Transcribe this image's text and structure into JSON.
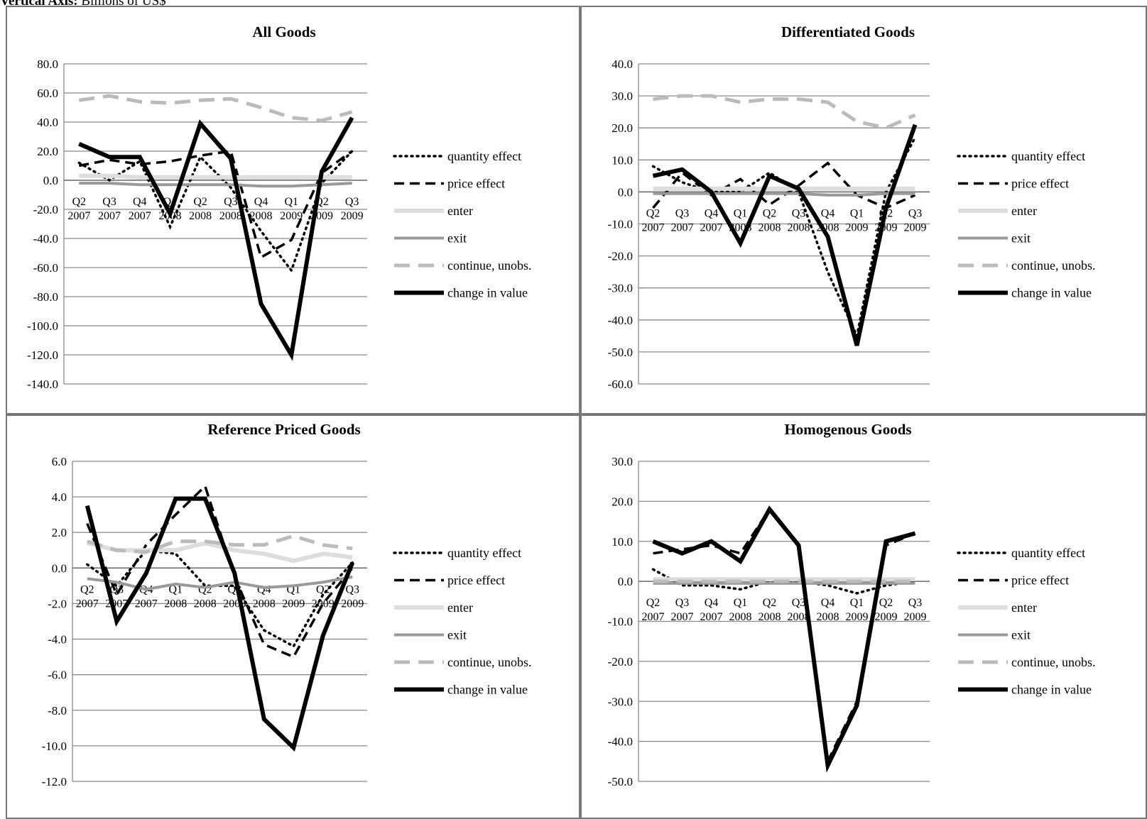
{
  "caption": {
    "label": "Vertical Axis:",
    "text": " Billions of US$"
  },
  "legend": [
    {
      "name": "quantity effect",
      "color": "#000000",
      "width": 3.5,
      "dash": "2,6"
    },
    {
      "name": "price effect",
      "color": "#000000",
      "width": 3.5,
      "dash": "14,8"
    },
    {
      "name": "enter",
      "color": "#dddddd",
      "width": 6,
      "dash": ""
    },
    {
      "name": "exit",
      "color": "#999999",
      "width": 4,
      "dash": ""
    },
    {
      "name": "continue, unobs.",
      "color": "#bbbbbb",
      "width": 5,
      "dash": "22,12"
    },
    {
      "name": "change in value",
      "color": "#000000",
      "width": 6,
      "dash": ""
    }
  ],
  "categories": [
    [
      "Q2",
      "2007"
    ],
    [
      "Q3",
      "2007"
    ],
    [
      "Q4",
      "2007"
    ],
    [
      "Q1",
      "2008"
    ],
    [
      "Q2",
      "2008"
    ],
    [
      "Q3",
      "2008"
    ],
    [
      "Q4",
      "2008"
    ],
    [
      "Q1",
      "2009"
    ],
    [
      "Q2",
      "2009"
    ],
    [
      "Q3",
      "2009"
    ]
  ],
  "chart_data": [
    {
      "type": "line",
      "title": "All Goods",
      "ylim": [
        -140,
        80
      ],
      "ystep": 20,
      "series": [
        {
          "name": "quantity effect",
          "values": [
            12,
            0,
            13,
            -32,
            16,
            -5,
            -35,
            -62,
            -2,
            20
          ]
        },
        {
          "name": "price effect",
          "values": [
            10,
            14,
            11,
            13,
            17,
            20,
            -53,
            -41,
            5,
            20
          ]
        },
        {
          "name": "enter",
          "values": [
            3,
            3,
            2,
            2,
            2,
            2,
            2,
            2,
            2,
            2
          ]
        },
        {
          "name": "exit",
          "values": [
            -2,
            -2,
            -3,
            -3,
            -3,
            -3,
            -4,
            -4,
            -3,
            -2
          ]
        },
        {
          "name": "continue, unobs.",
          "values": [
            55,
            58,
            54,
            53,
            55,
            56,
            50,
            43,
            41,
            47
          ]
        },
        {
          "name": "change in value",
          "values": [
            25,
            16,
            16,
            -23,
            39,
            15,
            -85,
            -120,
            6,
            43
          ]
        }
      ]
    },
    {
      "type": "line",
      "title": "Differentiated Goods",
      "ylim": [
        -60,
        40
      ],
      "ystep": 10,
      "series": [
        {
          "name": "quantity effect",
          "values": [
            8,
            3,
            0,
            0,
            6,
            0,
            -25,
            -45,
            0,
            17
          ]
        },
        {
          "name": "price effect",
          "values": [
            -5,
            6,
            -1,
            4,
            -4,
            2,
            9,
            -1,
            -5,
            -1
          ]
        },
        {
          "name": "enter",
          "values": [
            1,
            1,
            1,
            1,
            1,
            1,
            1,
            1,
            1,
            1
          ]
        },
        {
          "name": "exit",
          "values": [
            -0.5,
            -0.5,
            -0.5,
            -0.5,
            -0.5,
            -0.5,
            -1,
            -1,
            -0.5,
            -0.5
          ]
        },
        {
          "name": "continue, unobs.",
          "values": [
            29,
            30,
            30,
            28,
            29,
            29,
            28,
            22,
            20,
            24
          ]
        },
        {
          "name": "change in value",
          "values": [
            5,
            7,
            0,
            -16,
            5,
            1,
            -14,
            -48,
            -5,
            21
          ]
        }
      ]
    },
    {
      "type": "line",
      "title": "Reference Priced Goods",
      "ylim": [
        -12,
        6
      ],
      "ystep": 2,
      "series": [
        {
          "name": "quantity effect",
          "values": [
            0.2,
            -1,
            1,
            0.8,
            -1,
            -1,
            -3.5,
            -4.4,
            -1.5,
            0.3
          ]
        },
        {
          "name": "price effect",
          "values": [
            2.5,
            -1.5,
            1.3,
            3,
            4.6,
            -0.5,
            -4.3,
            -5,
            -2,
            0
          ]
        },
        {
          "name": "enter",
          "values": [
            1.4,
            1,
            1,
            1,
            1.4,
            1,
            0.8,
            0.4,
            0.8,
            0.6
          ]
        },
        {
          "name": "exit",
          "values": [
            -0.6,
            -0.8,
            -1.2,
            -0.9,
            -1.1,
            -0.8,
            -1.1,
            -1,
            -0.8,
            -0.5
          ]
        },
        {
          "name": "continue, unobs.",
          "values": [
            1.5,
            1,
            0.9,
            1.5,
            1.5,
            1.3,
            1.3,
            1.8,
            1.3,
            1.1
          ]
        },
        {
          "name": "change in value",
          "values": [
            3.5,
            -3,
            -0.3,
            3.9,
            3.9,
            -0.3,
            -8.5,
            -10.1,
            -3.8,
            0.3
          ]
        }
      ]
    },
    {
      "type": "line",
      "title": "Homogenous Goods",
      "ylim": [
        -50,
        30
      ],
      "ystep": 10,
      "series": [
        {
          "name": "quantity effect",
          "values": [
            3,
            -1,
            -1,
            -2,
            0,
            0,
            -1,
            -3,
            -1,
            0
          ]
        },
        {
          "name": "price effect",
          "values": [
            7,
            8,
            9,
            7,
            18,
            9,
            -45,
            -30,
            9,
            12
          ]
        },
        {
          "name": "enter",
          "values": [
            0.5,
            0.5,
            0.5,
            0.5,
            0.5,
            0.5,
            0.5,
            0.5,
            0.5,
            0.5
          ]
        },
        {
          "name": "exit",
          "values": [
            -0.5,
            -0.5,
            -0.5,
            -0.5,
            -0.5,
            -0.5,
            -0.5,
            -0.5,
            -0.5,
            -0.5
          ]
        },
        {
          "name": "continue, unobs.",
          "values": [
            0,
            0,
            0,
            0,
            0,
            0,
            0,
            0,
            0,
            0
          ]
        },
        {
          "name": "change in value",
          "values": [
            10,
            7,
            10,
            5,
            18,
            9,
            -46,
            -31,
            10,
            12
          ]
        }
      ]
    }
  ]
}
